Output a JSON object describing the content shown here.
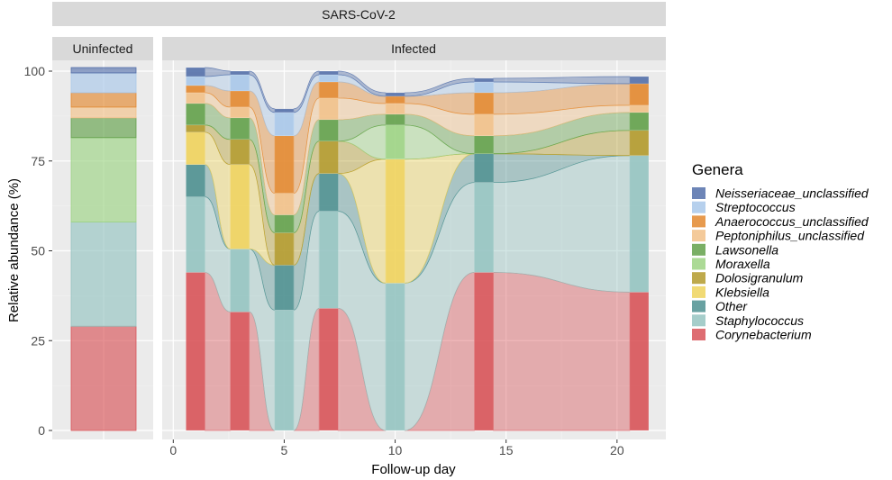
{
  "chart_data": {
    "type": "area",
    "title": "SARS-CoV-2",
    "panels": [
      "Uninfected",
      "Infected"
    ],
    "xlabel": "Follow-up day",
    "ylabel": "Relative abundance (%)",
    "ylim": [
      0,
      100
    ],
    "yticks": [
      "0",
      "25",
      "50",
      "75",
      "100"
    ],
    "xlim": [
      -0.5,
      22.2
    ],
    "xticks": [
      "0",
      "5",
      "10",
      "15",
      "20"
    ],
    "xtick_values": [
      0,
      5,
      10,
      15,
      20
    ],
    "legend_title": "Genera",
    "legend_position": "right",
    "genera_bottom_to_top": [
      "Corynebacterium",
      "Staphylococcus",
      "Other",
      "Klebsiella",
      "Dolosigranulum",
      "Moraxella",
      "Lawsonella",
      "Peptoniphilus_unclassified",
      "Anaerococcus_unclassified",
      "Streptococcus",
      "Neisseriaceae_unclassified"
    ],
    "legend_entries": [
      "Neisseriaceae_unclassified",
      "Streptococcus",
      "Anaerococcus_unclassified",
      "Peptoniphilus_unclassified",
      "Lawsonella",
      "Moraxella",
      "Dolosigranulum",
      "Klebsiella",
      "Other",
      "Staphylococcus",
      "Corynebacterium"
    ],
    "colors": {
      "Neisseriaceae_unclassified": "#5470aa",
      "Streptococcus": "#a9c8ea",
      "Anaerococcus_unclassified": "#e3882f",
      "Peptoniphilus_unclassified": "#f2c188",
      "Lawsonella": "#63a14a",
      "Moraxella": "#9dd484",
      "Dolosigranulum": "#b39a2b",
      "Klebsiella": "#efd35c",
      "Other": "#4e9090",
      "Staphylococcus": "#95c4c1",
      "Corynebacterium": "#d85459"
    },
    "uninfected": {
      "Corynebacterium": 29,
      "Staphylococcus": 29,
      "Other": 0,
      "Klebsiella": 0,
      "Dolosigranulum": 0,
      "Moraxella": 23.5,
      "Lawsonella": 5.5,
      "Peptoniphilus_unclassified": 3,
      "Anaerococcus_unclassified": 4,
      "Streptococcus": 5.5,
      "Neisseriaceae_unclassified": 1.5
    },
    "infected_days": [
      1,
      3,
      5,
      7,
      10,
      14,
      21
    ],
    "infected_series": [
      {
        "name": "Corynebacterium",
        "values": [
          44,
          33,
          0,
          34,
          0,
          44,
          38.5
        ]
      },
      {
        "name": "Staphylococcus",
        "values": [
          21,
          17.5,
          33.5,
          27,
          41,
          25,
          38
        ]
      },
      {
        "name": "Other",
        "values": [
          9,
          0,
          12.5,
          10.5,
          0,
          8,
          0
        ]
      },
      {
        "name": "Klebsiella",
        "values": [
          9,
          23.5,
          0,
          0,
          34.5,
          0,
          0
        ]
      },
      {
        "name": "Dolosigranulum",
        "values": [
          2,
          7,
          9,
          9,
          0,
          0,
          7
        ]
      },
      {
        "name": "Moraxella",
        "values": [
          0,
          0,
          0,
          0,
          9.5,
          0,
          0
        ]
      },
      {
        "name": "Lawsonella",
        "values": [
          6,
          6,
          5,
          6,
          3,
          5,
          5
        ]
      },
      {
        "name": "Peptoniphilus_unclassified",
        "values": [
          3,
          3,
          6,
          6,
          3,
          6,
          2
        ]
      },
      {
        "name": "Anaerococcus_unclassified",
        "values": [
          2,
          4.5,
          16,
          4.5,
          2,
          6,
          6
        ]
      },
      {
        "name": "Streptococcus",
        "values": [
          2.5,
          4.5,
          6.5,
          2,
          0,
          3,
          0
        ]
      },
      {
        "name": "Neisseriaceae_unclassified",
        "values": [
          2.5,
          1,
          1,
          1,
          1,
          1,
          2
        ]
      }
    ]
  }
}
